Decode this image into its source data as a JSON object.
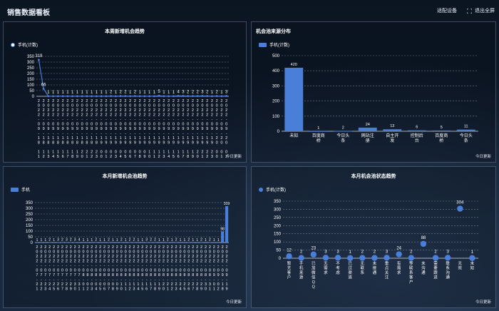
{
  "app": {
    "title": "销售数据看板"
  },
  "toolbar": {
    "adapt_label": "适配设备",
    "exit_label": "退出全屏"
  },
  "panels": {
    "week_new": {
      "title": "本周新增机会趋势",
      "legend": "手机(计数)",
      "footer": "今日更新"
    },
    "source": {
      "title": "机会池来源分布",
      "legend": "手机(计数)",
      "footer": "今日更新"
    },
    "month_new": {
      "title": "本月新增机会池趋势",
      "legend": "手机",
      "footer": "今日更新"
    },
    "status": {
      "title": "本月机会池状态趋势",
      "legend": "手机(计数)",
      "footer": "今日更新"
    }
  },
  "colors": {
    "accent": "#4a7fd9",
    "grid": "#8896aa"
  },
  "chart_data": [
    {
      "type": "line",
      "title": "本周新增机会趋势",
      "ylim": [
        0,
        350
      ],
      "yticks": [
        0,
        50,
        100,
        150,
        200,
        250,
        300,
        350
      ],
      "series": [
        {
          "name": "手机(计数)",
          "values": [
            319,
            66,
            1,
            1,
            1,
            1,
            1,
            1,
            1,
            1,
            1,
            1,
            1,
            1,
            1,
            2,
            1,
            2,
            2,
            1,
            2,
            1,
            1,
            1,
            1,
            5,
            1,
            1,
            1,
            4,
            3,
            2,
            2,
            2,
            3,
            2,
            1,
            2,
            1,
            3
          ]
        }
      ],
      "x_labels": [
        "2022-09-18 11",
        "2022-09-18 12",
        "2022-09-18 13",
        "2022-09-18 14",
        "2022-09-18 15",
        "2022-09-18 16",
        "2022-09-18 17",
        "2022-09-18 18",
        "2022-09-18 19",
        "2022-09-18 20",
        "2022-09-18 21",
        "2022-09-18 22",
        "2022-09-18 23",
        "2022-09-19 00",
        "2022-09-19 01",
        "2022-09-19 02",
        "2022-09-19 03",
        "2022-09-19 04",
        "2022-09-19 05",
        "2022-09-19 06",
        "2022-09-19 07",
        "2022-09-19 08",
        "2022-09-19 09",
        "2022-09-19 10",
        "2022-09-19 11",
        "2022-09-19 12",
        "2022-09-19 13",
        "2022-09-19 14",
        "2022-09-19 15",
        "2022-09-19 16",
        "2022-09-19 17",
        "2022-09-19 18",
        "2022-09-19 19",
        "2022-09-19 20",
        "2022-09-19 21",
        "2022-09-19 22",
        "2022-09-19 23",
        "2022-09-20 00",
        "2022-09-20 01",
        "2022-09-20 02"
      ],
      "grid": true
    },
    {
      "type": "bar",
      "title": "机会池来源分布",
      "ylim": [
        0,
        500
      ],
      "yticks": [
        0,
        100,
        200,
        300,
        400,
        500
      ],
      "categories": [
        "未知",
        "百度商桥",
        "今日头条",
        "网站注册",
        "自主开发",
        "控制后台",
        "百度商桥",
        "今日头条"
      ],
      "series": [
        {
          "name": "手机(计数)",
          "values": [
            420,
            1,
            2,
            24,
            13,
            6,
            5,
            11
          ]
        }
      ],
      "grid": true
    },
    {
      "type": "bar",
      "title": "本月新增机会池趋势",
      "ylim": [
        0,
        350
      ],
      "yticks": [
        0,
        50,
        100,
        150,
        200,
        250,
        300,
        350
      ],
      "series": [
        {
          "name": "手机",
          "values": [
            1,
            1,
            1,
            2,
            1,
            3,
            2,
            3,
            2,
            3,
            4,
            1,
            1,
            1,
            2,
            1,
            1,
            2,
            1,
            1,
            2,
            1,
            2,
            2,
            1,
            1,
            3,
            2,
            2,
            1,
            1,
            2,
            1,
            2,
            1,
            1,
            2,
            1,
            1,
            2,
            1,
            2,
            1,
            1,
            98,
            319
          ]
        }
      ],
      "x_labels": [
        "2022-07-21",
        "2022-07-22",
        "2022-07-23",
        "2022-07-24",
        "2022-07-25",
        "2022-07-26",
        "2022-07-27",
        "2022-07-28",
        "2022-07-29",
        "2022-07-30",
        "2022-07-31",
        "2022-08-01",
        "2022-08-02",
        "2022-08-03",
        "2022-08-04",
        "2022-08-05",
        "2022-08-06",
        "2022-08-07",
        "2022-08-08",
        "2022-08-09",
        "2022-08-10",
        "2022-08-11",
        "2022-08-12",
        "2022-08-13",
        "2022-08-14",
        "2022-08-15",
        "2022-08-16",
        "2022-08-17",
        "2022-08-18",
        "2022-08-19",
        "2022-08-20",
        "2022-08-21",
        "2022-08-22",
        "2022-08-23",
        "2022-08-24",
        "2022-08-25",
        "2022-08-26",
        "2022-08-27",
        "2022-08-28",
        "2022-08-29",
        "2022-08-30",
        "2022-08-31",
        "2022-09-01",
        "2022-09-02",
        "2022-09-18",
        "2022-09-19"
      ],
      "grid": true
    },
    {
      "type": "scatter",
      "title": "本月机会池状态趋势",
      "ylim": [
        0,
        350
      ],
      "yticks": [
        0,
        50,
        100,
        150,
        200,
        250,
        300,
        350
      ],
      "categories": [
        "暂无客户",
        "手机来源",
        "已加微信QQ",
        "无需求",
        "不考虑",
        "已过渠道",
        "无联系",
        "未接通",
        "重点关注",
        "有需求",
        "等联系客户",
        "未沟通",
        "需要跟进",
        "联系沟通",
        "无效",
        "未知"
      ],
      "series": [
        {
          "name": "手机(计数)",
          "values": [
            12,
            2,
            23,
            3,
            3,
            1,
            2,
            2,
            3,
            24,
            2,
            88,
            2,
            3,
            304,
            1
          ]
        }
      ],
      "grid": true
    }
  ]
}
